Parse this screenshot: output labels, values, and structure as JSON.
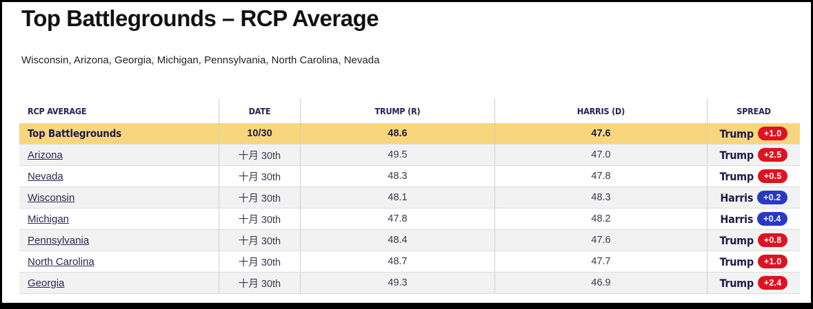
{
  "page": {
    "title": "Top Battlegrounds – RCP Average",
    "subtitle": "Wisconsin, Arizona, Georgia, Michigan, Pennsylvania, North Carolina, Nevada"
  },
  "table": {
    "columns": [
      "RCP AVERAGE",
      "DATE",
      "TRUMP (R)",
      "HARRIS (D)",
      "SPREAD"
    ],
    "rows": [
      {
        "name": "Top Battlegrounds",
        "date": "10/30",
        "trump": "48.6",
        "harris": "47.6",
        "spread_leader": "Trump",
        "spread_value": "+1.0",
        "highlight": true,
        "link": false
      },
      {
        "name": "Arizona",
        "date": "十月 30th",
        "trump": "49.5",
        "harris": "47.0",
        "spread_leader": "Trump",
        "spread_value": "+2.5",
        "highlight": false,
        "link": true
      },
      {
        "name": "Nevada",
        "date": "十月 30th",
        "trump": "48.3",
        "harris": "47.8",
        "spread_leader": "Trump",
        "spread_value": "+0.5",
        "highlight": false,
        "link": true
      },
      {
        "name": "Wisconsin",
        "date": "十月 30th",
        "trump": "48.1",
        "harris": "48.3",
        "spread_leader": "Harris",
        "spread_value": "+0.2",
        "highlight": false,
        "link": true
      },
      {
        "name": "Michigan",
        "date": "十月 30th",
        "trump": "47.8",
        "harris": "48.2",
        "spread_leader": "Harris",
        "spread_value": "+0.4",
        "highlight": false,
        "link": true
      },
      {
        "name": "Pennsylvania",
        "date": "十月 30th",
        "trump": "48.4",
        "harris": "47.6",
        "spread_leader": "Trump",
        "spread_value": "+0.8",
        "highlight": false,
        "link": true
      },
      {
        "name": "North Carolina",
        "date": "十月 30th",
        "trump": "48.7",
        "harris": "47.7",
        "spread_leader": "Trump",
        "spread_value": "+1.0",
        "highlight": false,
        "link": true
      },
      {
        "name": "Georgia",
        "date": "十月 30th",
        "trump": "49.3",
        "harris": "46.9",
        "spread_leader": "Trump",
        "spread_value": "+2.4",
        "highlight": false,
        "link": true
      }
    ]
  },
  "colors": {
    "highlight_row": "#f8d67d",
    "trump_red": "#e01222",
    "harris_blue": "#2839c8",
    "header_text": "#2a2153"
  }
}
